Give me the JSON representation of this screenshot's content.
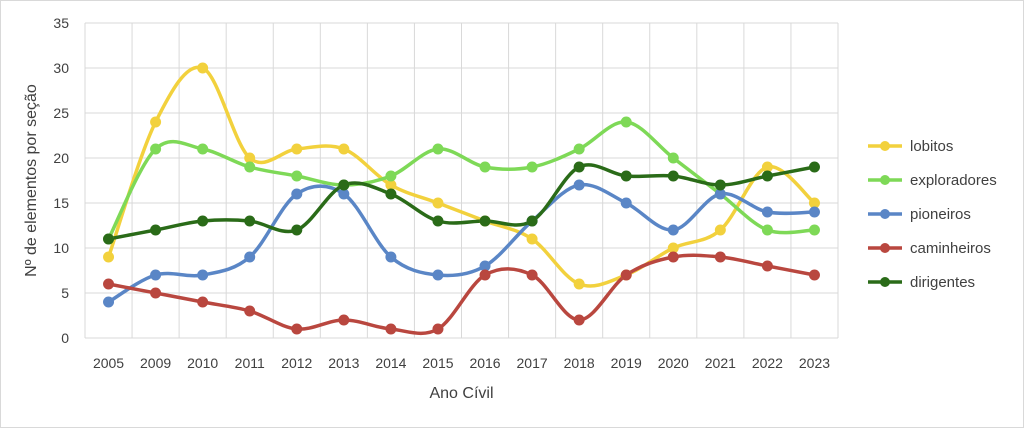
{
  "chart_data": {
    "type": "line",
    "title": "",
    "xlabel": "Ano Cívil",
    "ylabel": "Nº de elementos por seção",
    "ylim": [
      0,
      35
    ],
    "yticks": [
      "0",
      "5",
      "10",
      "15",
      "20",
      "25",
      "30",
      "35"
    ],
    "grid": true,
    "legend_position": "right",
    "smooth": true,
    "categories": [
      "2005",
      "2009",
      "2010",
      "2011",
      "2012",
      "2013",
      "2014",
      "2015",
      "2016",
      "2017",
      "2018",
      "2019",
      "2020",
      "2021",
      "2022",
      "2023"
    ],
    "series": [
      {
        "name": "lobitos",
        "color": "#f2d13d",
        "values": [
          9,
          24,
          30,
          20,
          21,
          21,
          17,
          15,
          13,
          11,
          6,
          7,
          10,
          12,
          19,
          15
        ]
      },
      {
        "name": "exploradores",
        "color": "#7ed957",
        "values": [
          11,
          21,
          21,
          19,
          18,
          17,
          18,
          21,
          19,
          19,
          21,
          24,
          20,
          16,
          12,
          12
        ]
      },
      {
        "name": "pioneiros",
        "color": "#5a86c6",
        "values": [
          4,
          7,
          7,
          9,
          16,
          16,
          9,
          7,
          8,
          13,
          17,
          15,
          12,
          16,
          14,
          14
        ]
      },
      {
        "name": "caminheiros",
        "color": "#b9473f",
        "values": [
          6,
          5,
          4,
          3,
          1,
          2,
          1,
          1,
          7,
          7,
          2,
          7,
          9,
          9,
          8,
          7
        ]
      },
      {
        "name": "dirigentes",
        "color": "#2a6b18",
        "values": [
          11,
          12,
          13,
          13,
          12,
          17,
          16,
          13,
          13,
          13,
          19,
          18,
          18,
          17,
          18,
          19
        ]
      }
    ]
  }
}
